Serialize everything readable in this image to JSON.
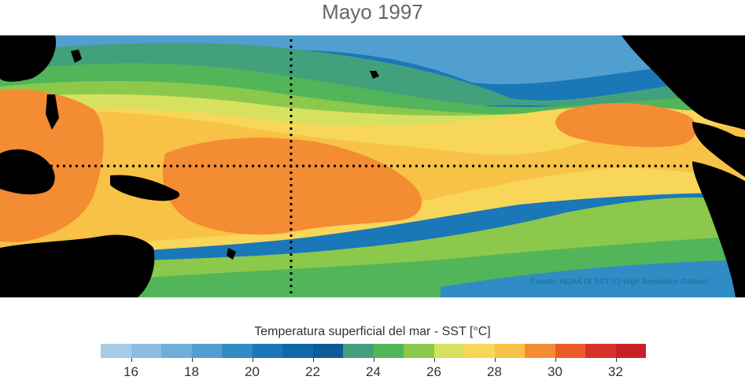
{
  "title": "Mayo 1997",
  "source_note": "Fuente: NOAA OI SST V2 High Resolution Dataset",
  "colorbar": {
    "title": "Temperatura superficial del mar - SST  [°C]",
    "min": 15,
    "max": 33,
    "colors": [
      "#a8cbe6",
      "#8bbde0",
      "#6eaed8",
      "#519fd0",
      "#2f8cc4",
      "#1a78b8",
      "#0f68a8",
      "#0c5b96",
      "#43a07c",
      "#52b559",
      "#8cc84c",
      "#d6e160",
      "#f7d65a",
      "#f7c245",
      "#f48c33",
      "#ec5b26",
      "#d9302a",
      "#ca1f27"
    ],
    "ticks": [
      16,
      18,
      20,
      22,
      24,
      26,
      28,
      30,
      32
    ]
  },
  "map": {
    "region": "Tropical Pacific Ocean",
    "equator_line": "dotted",
    "dateline_line": "dotted"
  }
}
